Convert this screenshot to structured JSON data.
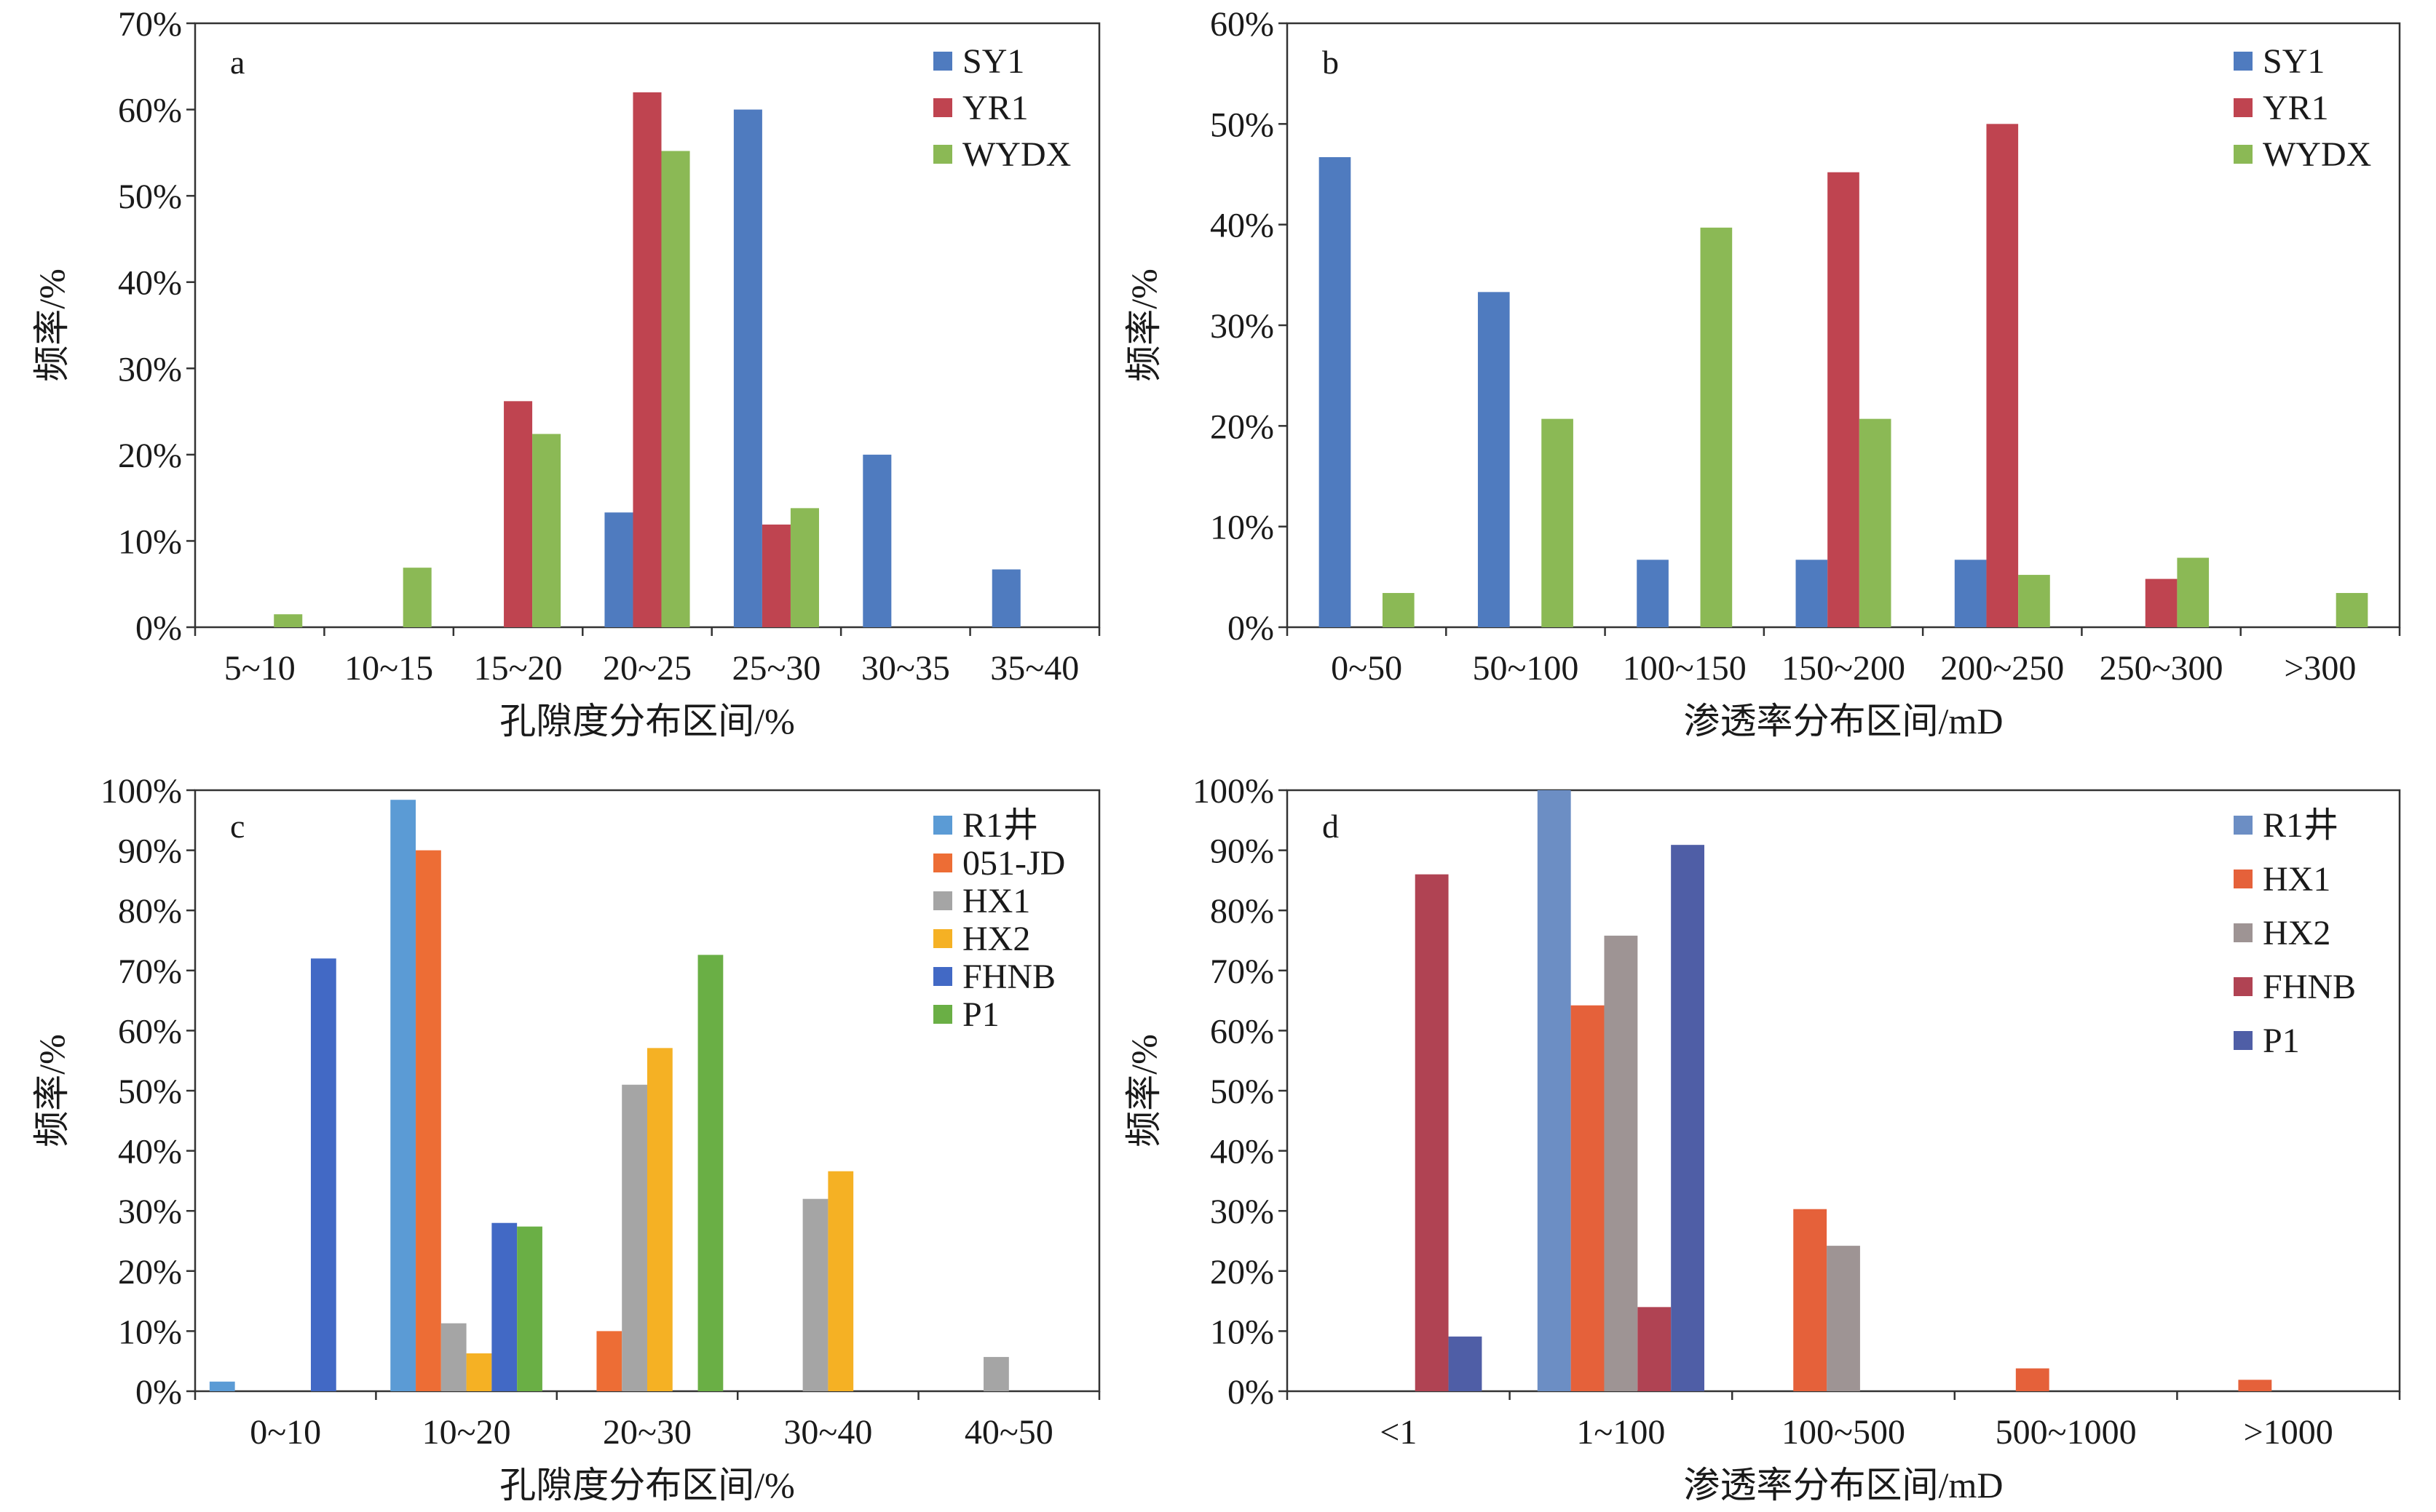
{
  "chart_data": [
    {
      "id": "a",
      "type": "bar",
      "panel_label": "a",
      "xlabel": "孔隙度分布区间/%",
      "ylabel": "频率/%",
      "ylim": [
        0,
        70
      ],
      "yticks": [
        "0%",
        "10%",
        "20%",
        "30%",
        "40%",
        "50%",
        "60%",
        "70%"
      ],
      "categories": [
        "5~10",
        "10~15",
        "15~20",
        "20~25",
        "25~30",
        "30~35",
        "35~40"
      ],
      "legend_position": "top-right",
      "series": [
        {
          "name": "SY1",
          "color": "#4f7bbf",
          "values": [
            0,
            0,
            0,
            13.3,
            60.0,
            20.0,
            6.7
          ]
        },
        {
          "name": "YR1",
          "color": "#bf4450",
          "values": [
            0,
            0,
            26.2,
            62.0,
            11.9,
            0,
            0
          ]
        },
        {
          "name": "WYDX",
          "color": "#8bb955",
          "values": [
            1.5,
            6.9,
            22.4,
            55.2,
            13.8,
            0,
            0
          ]
        }
      ]
    },
    {
      "id": "b",
      "type": "bar",
      "panel_label": "b",
      "xlabel": "渗透率分布区间/mD",
      "ylabel": "频率/%",
      "ylim": [
        0,
        60
      ],
      "yticks": [
        "0%",
        "10%",
        "20%",
        "30%",
        "40%",
        "50%",
        "60%"
      ],
      "categories": [
        "0~50",
        "50~100",
        "100~150",
        "150~200",
        "200~250",
        "250~300",
        ">300"
      ],
      "legend_position": "top-right",
      "series": [
        {
          "name": "SY1",
          "color": "#4f7bbf",
          "values": [
            46.7,
            33.3,
            6.7,
            6.7,
            6.7,
            0,
            0
          ]
        },
        {
          "name": "YR1",
          "color": "#bf4450",
          "values": [
            0,
            0,
            0,
            45.2,
            50.0,
            4.8,
            0
          ]
        },
        {
          "name": "WYDX",
          "color": "#8bb955",
          "values": [
            3.4,
            20.7,
            39.7,
            20.7,
            5.2,
            6.9,
            3.4
          ]
        }
      ]
    },
    {
      "id": "c",
      "type": "bar",
      "panel_label": "c",
      "xlabel": "孔隙度分布区间/%",
      "ylabel": "频率/%",
      "ylim": [
        0,
        100
      ],
      "yticks": [
        "0%",
        "10%",
        "20%",
        "30%",
        "40%",
        "50%",
        "60%",
        "70%",
        "80%",
        "90%",
        "100%"
      ],
      "categories": [
        "0~10",
        "10~20",
        "20~30",
        "30~40",
        "40~50"
      ],
      "legend_position": "top-right",
      "series": [
        {
          "name": "R1井",
          "color": "#5b9bd5",
          "values": [
            1.6,
            98.4,
            0,
            0,
            0
          ]
        },
        {
          "name": "051-JD",
          "color": "#ed6d35",
          "values": [
            0,
            90.0,
            10.0,
            0,
            0
          ]
        },
        {
          "name": "HX1",
          "color": "#a5a5a5",
          "values": [
            0,
            11.3,
            51.0,
            32.0,
            5.7
          ]
        },
        {
          "name": "HX2",
          "color": "#f5b124",
          "values": [
            0,
            6.3,
            57.1,
            36.6,
            0
          ]
        },
        {
          "name": "FHNB",
          "color": "#4269c5",
          "values": [
            72.0,
            28.0,
            0,
            0,
            0
          ]
        },
        {
          "name": "P1",
          "color": "#6aaf45",
          "values": [
            0,
            27.4,
            72.6,
            0,
            0
          ]
        }
      ]
    },
    {
      "id": "d",
      "type": "bar",
      "panel_label": "d",
      "xlabel": "渗透率分布区间/mD",
      "ylabel": "频率/%",
      "ylim": [
        0,
        100
      ],
      "yticks": [
        "0%",
        "10%",
        "20%",
        "30%",
        "40%",
        "50%",
        "60%",
        "70%",
        "80%",
        "90%",
        "100%"
      ],
      "categories": [
        "<1",
        "1~100",
        "100~500",
        "500~1000",
        ">1000"
      ],
      "legend_position": "top-right",
      "series": [
        {
          "name": "R1井",
          "color": "#6c8ec4",
          "values": [
            0,
            100.0,
            0,
            0,
            0
          ]
        },
        {
          "name": "HX1",
          "color": "#e5613a",
          "values": [
            0,
            64.2,
            30.3,
            3.8,
            1.9
          ]
        },
        {
          "name": "HX2",
          "color": "#9e9494",
          "values": [
            0,
            75.8,
            24.2,
            0,
            0
          ]
        },
        {
          "name": "FHNB",
          "color": "#b04353",
          "values": [
            86.0,
            14.0,
            0,
            0,
            0
          ]
        },
        {
          "name": "P1",
          "color": "#4f5ea6",
          "values": [
            9.1,
            90.9,
            0,
            0,
            0
          ]
        }
      ]
    }
  ]
}
